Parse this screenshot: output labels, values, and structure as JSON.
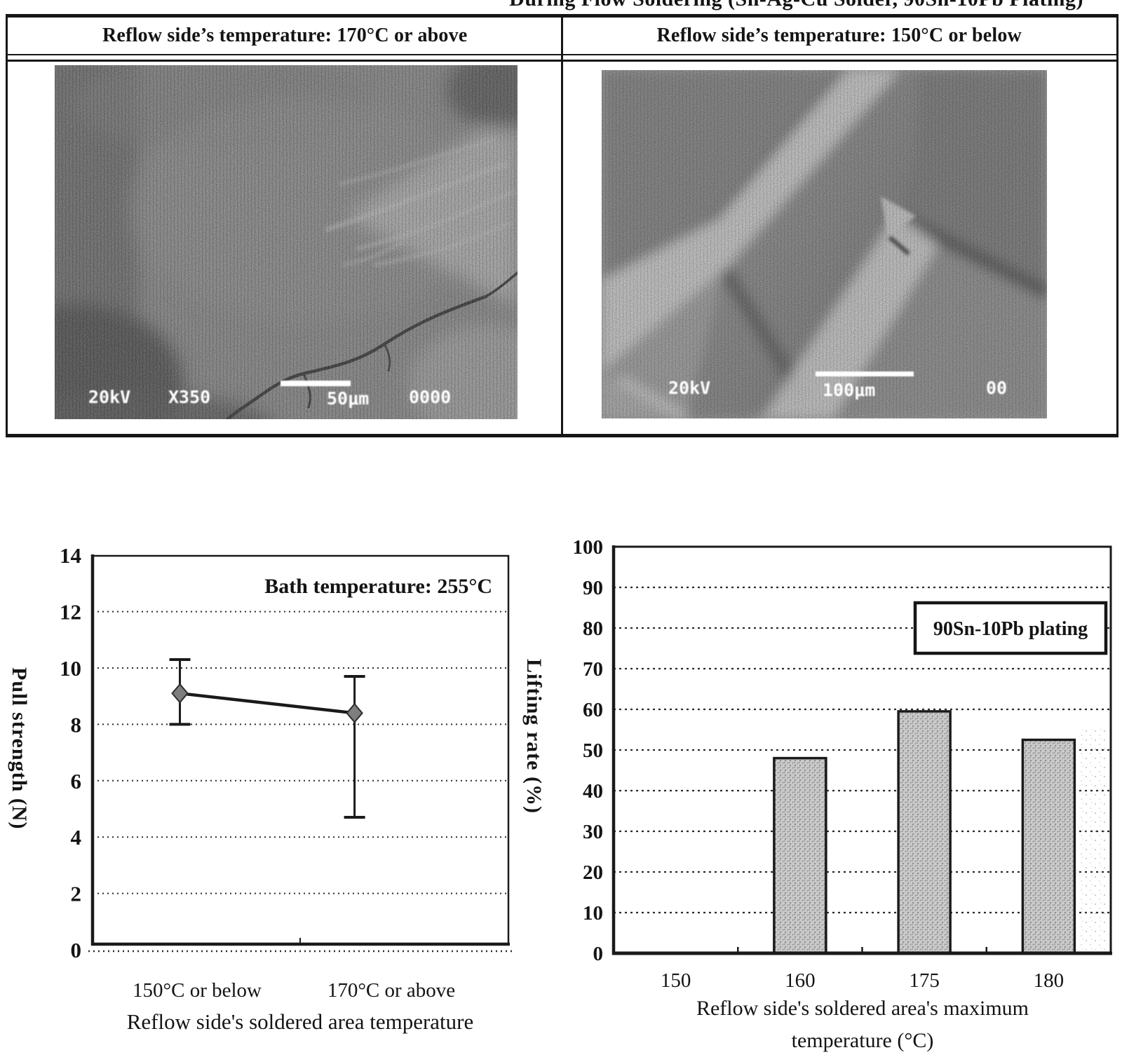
{
  "page": {
    "clipped_title": "During Flow Soldering (Sn-Ag-Cu Solder, 90Sn-10Pb Plating)"
  },
  "comparison_table": {
    "header_left": "Reflow side’s temperature: 170°C or above",
    "header_right": "Reflow side’s temperature: 150°C or below",
    "left_photo": {
      "description": "SEM micrograph of soldered area with crack",
      "stamps": [
        "20kV",
        "X350",
        "50μm",
        "0000"
      ]
    },
    "right_photo": {
      "description": "SEM micrograph of intact solder fillets",
      "stamps": [
        "20kV",
        "100μm",
        "00"
      ]
    }
  },
  "chart_data": [
    {
      "type": "line",
      "annotation": "Bath temperature: 255°C",
      "categories": [
        "150°C or below",
        "170°C or above"
      ],
      "series": [
        {
          "name": "Pull strength",
          "values": [
            9.1,
            8.4
          ],
          "error_high": [
            10.3,
            9.7
          ],
          "error_low": [
            8.0,
            4.7
          ]
        }
      ],
      "xlabel": "Reflow side's soldered area temperature",
      "ylabel": "Pull strength (N)",
      "ylim": [
        0,
        14
      ],
      "ytick_step": 2,
      "grid": "horizontal dotted",
      "marker": "gray diamond with error bars"
    },
    {
      "type": "bar",
      "legend": "90Sn-10Pb plating",
      "legend_position": "top-right",
      "categories": [
        "150",
        "160",
        "175",
        "180"
      ],
      "values": [
        0,
        48,
        59.5,
        52.5
      ],
      "xlabel": "Reflow side's soldered area's maximum temperature (°C)",
      "xlabel_lines": [
        "Reflow side's soldered area's maximum",
        "temperature (°C)"
      ],
      "ylabel": "Lifting rate (%)",
      "ylim": [
        0,
        100
      ],
      "ytick_step": 10,
      "grid": "horizontal dotted",
      "bar_fill": "#cdcdcd halftone",
      "bar_border": "#1b1b1b"
    }
  ]
}
